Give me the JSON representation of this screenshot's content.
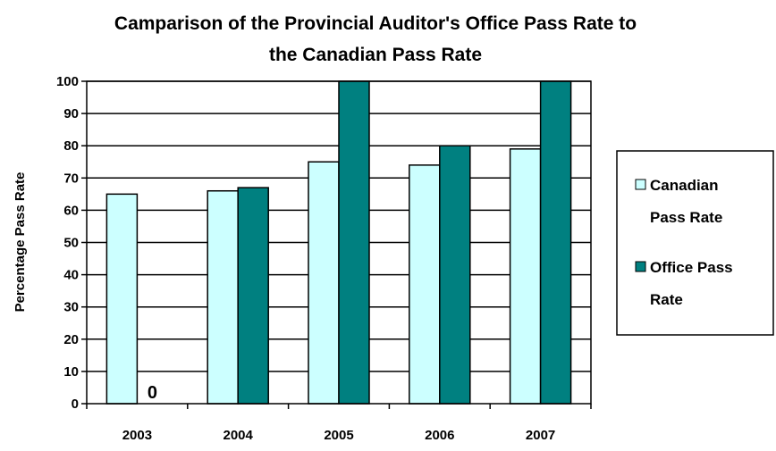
{
  "chart_data": {
    "type": "bar",
    "title_line1": "Camparison of the Provincial Auditor's Office Pass Rate to",
    "title_line2": "the Canadian Pass Rate",
    "xlabel": "",
    "ylabel": "Percentage Pass Rate",
    "categories": [
      "2003",
      "2004",
      "2005",
      "2006",
      "2007"
    ],
    "ylim": [
      0,
      100
    ],
    "yticks": [
      0,
      10,
      20,
      30,
      40,
      50,
      60,
      70,
      80,
      90,
      100
    ],
    "grid": true,
    "legend_position": "right",
    "series": [
      {
        "name": "Canadian Pass Rate",
        "legend_line1": "Canadian",
        "legend_line2": "Pass Rate",
        "color": "#ccffff",
        "values": [
          65,
          66,
          75,
          74,
          79
        ]
      },
      {
        "name": "Office Pass Rate",
        "legend_line1": "Office Pass",
        "legend_line2": "Rate",
        "color": "#008080",
        "values": [
          0,
          67,
          100,
          80,
          100
        ]
      }
    ],
    "annotations": [
      {
        "text": "0",
        "category": "2003",
        "series": 1
      }
    ]
  }
}
